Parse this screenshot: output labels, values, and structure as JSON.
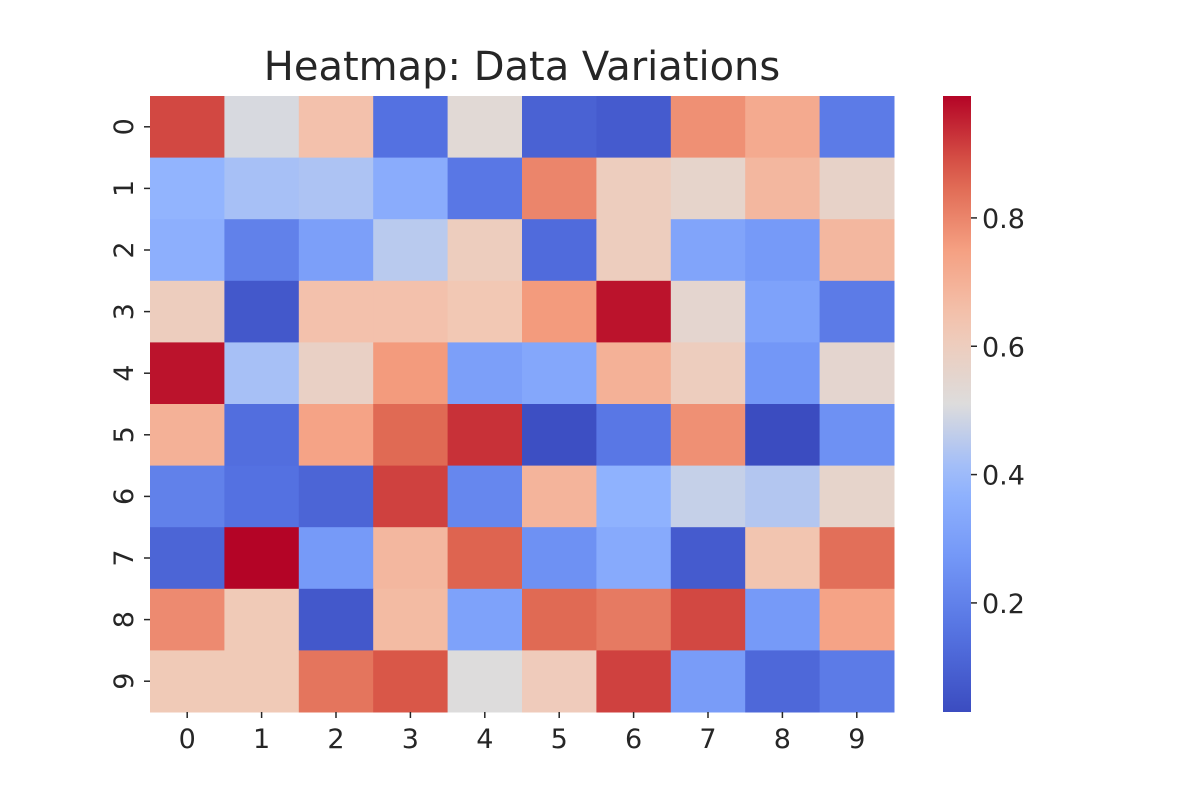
{
  "chart_data": {
    "type": "heatmap",
    "title": "Heatmap: Data Variations",
    "xlabel": "",
    "ylabel": "",
    "colormap": "coolwarm",
    "x_categories": [
      "0",
      "1",
      "2",
      "3",
      "4",
      "5",
      "6",
      "7",
      "8",
      "9"
    ],
    "y_categories": [
      "0",
      "1",
      "2",
      "3",
      "4",
      "5",
      "6",
      "7",
      "8",
      "9"
    ],
    "value_range": [
      0.03,
      0.99
    ],
    "colorbar_ticks": [
      "0.2",
      "0.4",
      "0.6",
      "0.8"
    ],
    "values": [
      [
        0.9,
        0.5,
        0.65,
        0.15,
        0.53,
        0.1,
        0.08,
        0.78,
        0.72,
        0.18
      ],
      [
        0.38,
        0.42,
        0.43,
        0.35,
        0.17,
        0.8,
        0.6,
        0.56,
        0.68,
        0.57
      ],
      [
        0.36,
        0.2,
        0.3,
        0.45,
        0.6,
        0.13,
        0.6,
        0.32,
        0.28,
        0.68
      ],
      [
        0.6,
        0.07,
        0.65,
        0.65,
        0.63,
        0.76,
        0.97,
        0.55,
        0.31,
        0.18
      ],
      [
        0.97,
        0.42,
        0.58,
        0.76,
        0.3,
        0.33,
        0.7,
        0.6,
        0.27,
        0.55
      ],
      [
        0.7,
        0.14,
        0.74,
        0.85,
        0.93,
        0.04,
        0.17,
        0.78,
        0.03,
        0.25
      ],
      [
        0.2,
        0.15,
        0.11,
        0.91,
        0.22,
        0.69,
        0.37,
        0.47,
        0.44,
        0.56
      ],
      [
        0.11,
        0.99,
        0.28,
        0.68,
        0.86,
        0.25,
        0.34,
        0.08,
        0.64,
        0.84
      ],
      [
        0.79,
        0.62,
        0.07,
        0.67,
        0.31,
        0.85,
        0.82,
        0.9,
        0.28,
        0.74
      ],
      [
        0.62,
        0.62,
        0.83,
        0.88,
        0.51,
        0.61,
        0.91,
        0.29,
        0.12,
        0.18
      ]
    ]
  }
}
